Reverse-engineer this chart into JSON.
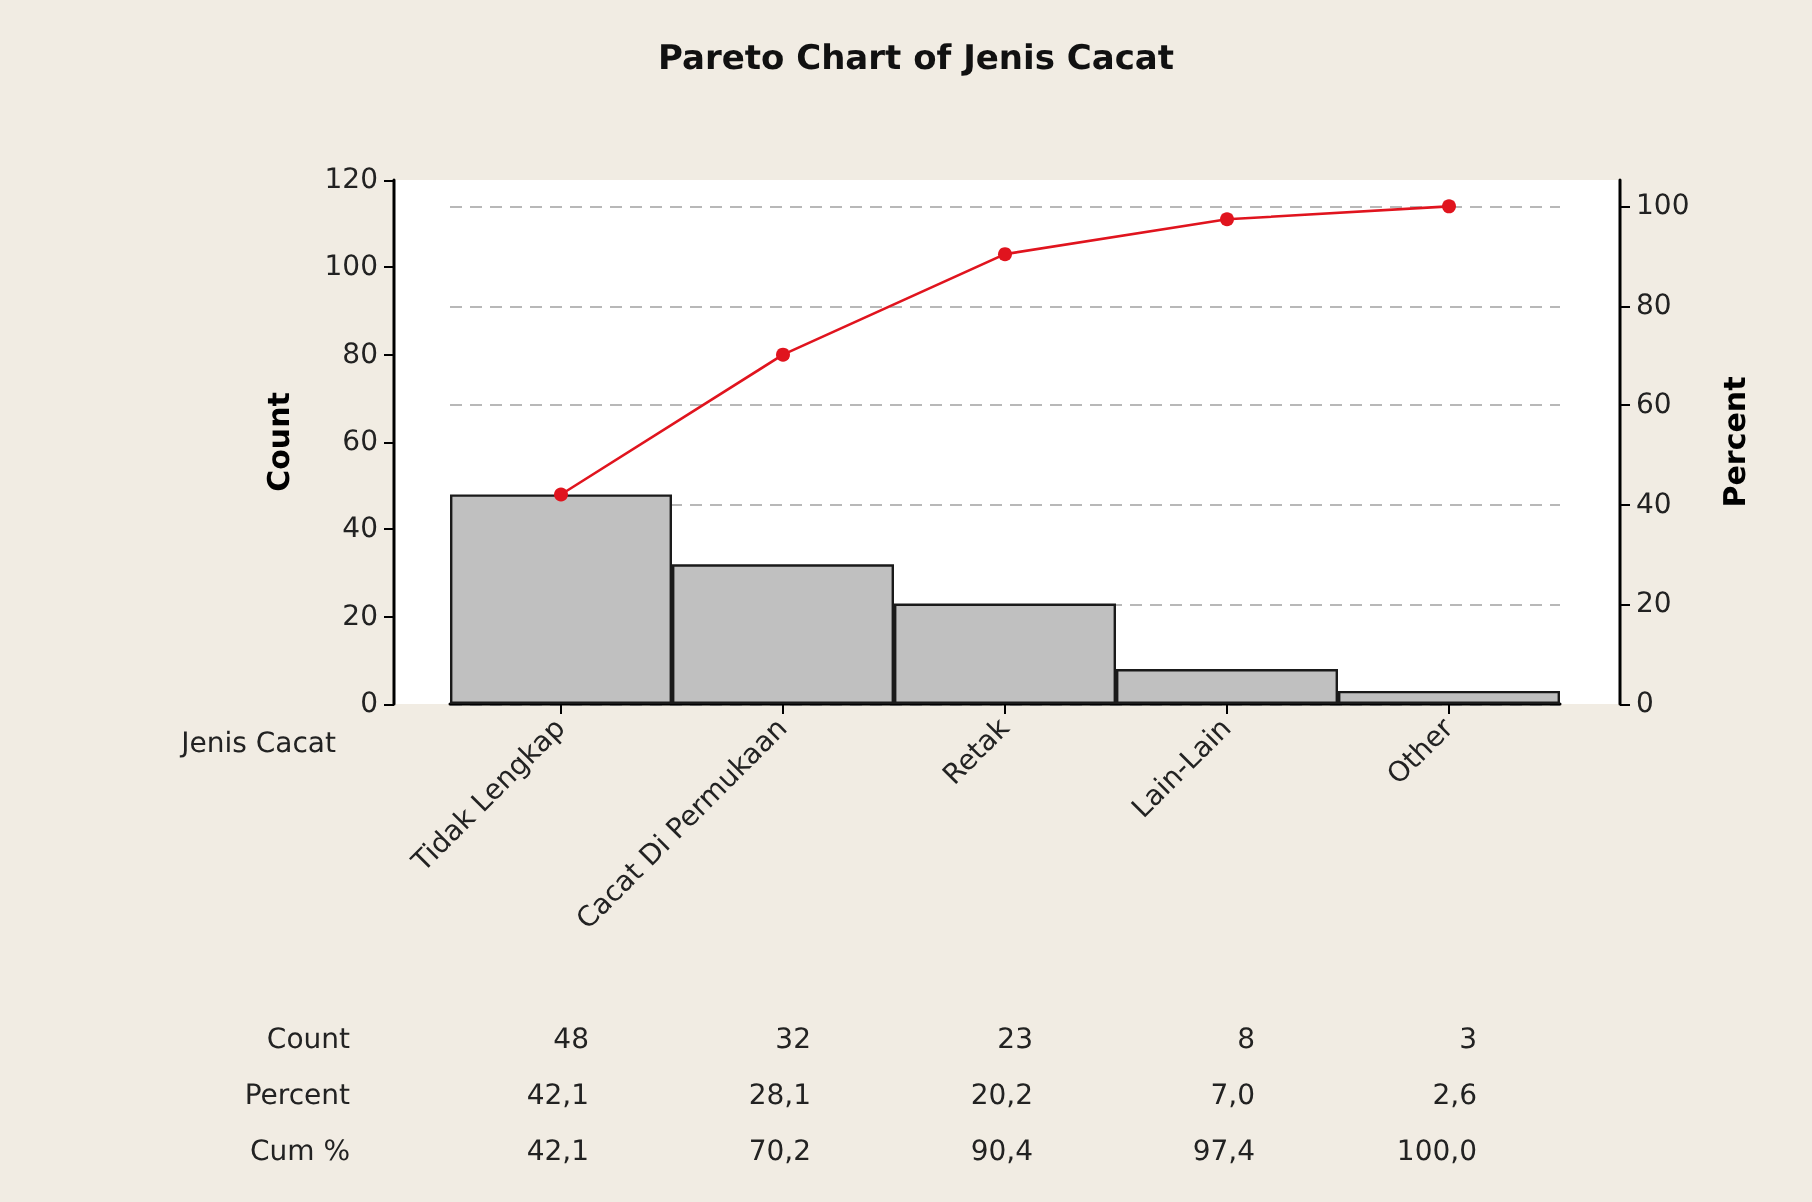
{
  "chart_data": {
    "type": "bar",
    "title": "Pareto Chart of Jenis Cacat",
    "xlabel": "Jenis Cacat",
    "ylabel": "Count",
    "y2label": "Percent",
    "categories": [
      "Tidak Lengkap",
      "Cacat Di Permukaan",
      "Retak",
      "Lain-Lain",
      "Other"
    ],
    "series": [
      {
        "color": "#c0c0c0",
        "values": [
          48,
          32,
          23,
          8,
          3
        ],
        "value_labels": [
          "48",
          "32",
          "23",
          "8",
          "3"
        ]
      },
      {
        "type": "line",
        "axis": "y2",
        "color": "#e0141e",
        "marker": "circle",
        "line_style": "solid",
        "values": [
          42.1,
          70.2,
          90.4,
          97.4,
          100.0
        ],
        "value_labels": [
          "42,1",
          "70,2",
          "90,4",
          "97,4",
          "100,0"
        ]
      }
    ],
    "annotations": [
      "Count",
      "Percent",
      "42,1",
      "28,1",
      "20,2",
      "7,0",
      "2,6",
      "Cum %"
    ],
    "ylim": [
      0,
      120
    ],
    "yticks": [
      0,
      20,
      40,
      60,
      80,
      100,
      120
    ],
    "y2lim": [
      0,
      105.3
    ],
    "y2ticks": [
      0,
      20,
      40,
      60,
      80,
      100
    ],
    "grid": "y2"
  }
}
